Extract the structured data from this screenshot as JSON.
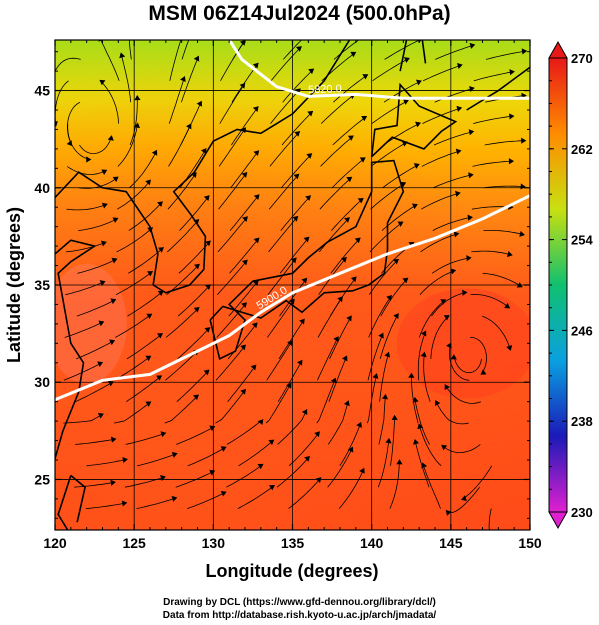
{
  "chart_data": {
    "type": "heatmap",
    "title": "MSM 06Z14Jul2024 (500.0hPa)",
    "xlabel": "Longitude (degrees)",
    "ylabel": "Latitude  (degrees)",
    "xlim": [
      120,
      150
    ],
    "ylim": [
      22.4,
      47.6
    ],
    "x_ticks": [
      120,
      125,
      130,
      135,
      140,
      145,
      150
    ],
    "y_ticks": [
      25,
      30,
      35,
      40,
      45
    ],
    "colorbar": {
      "min": 230,
      "max": 270,
      "ticks": [
        230,
        238,
        246,
        254,
        262,
        270
      ],
      "colors": [
        "#e020d0",
        "#1a1ab8",
        "#0aa0e0",
        "#10c070",
        "#c8e010",
        "#ff8c00",
        "#e81818"
      ]
    },
    "contours": [
      {
        "label": "5900.0",
        "points": [
          [
            120,
            29.1
          ],
          [
            123,
            30.1
          ],
          [
            126,
            30.4
          ],
          [
            129,
            31.6
          ],
          [
            131,
            32.4
          ],
          [
            133,
            33.6
          ],
          [
            135,
            34.6
          ],
          [
            138,
            35.6
          ],
          [
            141,
            36.6
          ],
          [
            144,
            37.4
          ],
          [
            147,
            38.4
          ],
          [
            150,
            39.6
          ]
        ]
      },
      {
        "label": "5820.0",
        "points": [
          [
            130.7,
            48.0
          ],
          [
            131.8,
            46.6
          ],
          [
            134,
            45.2
          ],
          [
            136,
            44.7
          ],
          [
            139,
            44.8
          ],
          [
            142,
            44.6
          ],
          [
            146,
            44.6
          ],
          [
            150,
            44.6
          ]
        ]
      }
    ]
  },
  "credit": {
    "line1": "Drawing by DCL (https://www.gfd-dennou.org/library/dcl/)",
    "line2": "Data from http://database.rish.kyoto-u.ac.jp/arch/jmadata/"
  }
}
